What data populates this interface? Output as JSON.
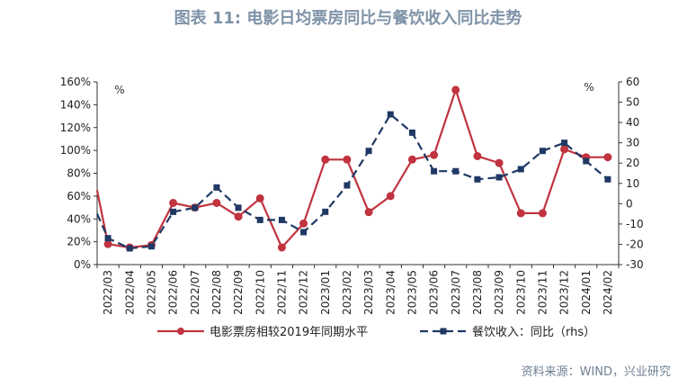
{
  "title": "图表 11: 电影日均票房同比与餐饮收入同比走势",
  "source": "资料来源：WIND，兴业研究",
  "chart_data": {
    "type": "line",
    "categories": [
      "2022/03",
      "2022/04",
      "2022/05",
      "2022/06",
      "2022/07",
      "2022/08",
      "2022/09",
      "2022/10",
      "2022/11",
      "2022/12",
      "2023/01",
      "2023/02",
      "2023/03",
      "2023/04",
      "2023/05",
      "2023/06",
      "2023/07",
      "2023/08",
      "2023/09",
      "2023/10",
      "2023/11",
      "2023/12",
      "2024/01",
      "2024/02"
    ],
    "left_axis": {
      "unit_label": "%",
      "ylim": [
        0,
        160
      ],
      "ticks": [
        0,
        20,
        40,
        60,
        80,
        100,
        120,
        140,
        160
      ],
      "tick_labels": [
        "0%",
        "20%",
        "40%",
        "60%",
        "80%",
        "100%",
        "120%",
        "140%",
        "160%"
      ]
    },
    "right_axis": {
      "unit_label": "%",
      "ylim": [
        -30,
        60
      ],
      "ticks": [
        -30,
        -20,
        -10,
        0,
        10,
        20,
        30,
        40,
        50,
        60
      ],
      "tick_labels": [
        "-30",
        "-20",
        "-10",
        "0",
        "10",
        "20",
        "30",
        "40",
        "50",
        "60"
      ]
    },
    "series": [
      {
        "name": "电影票房相较2019年同期水平",
        "axis": "left",
        "color": "#c0333f",
        "style": "solid",
        "marker": "circle",
        "starts_before": 65,
        "values": [
          18,
          15,
          17,
          54,
          50,
          54,
          42,
          58,
          15,
          36,
          92,
          92,
          46,
          60,
          92,
          96,
          153,
          95,
          89,
          45,
          45,
          101,
          94,
          94
        ]
      },
      {
        "name": "餐饮收入：同比（rhs）",
        "axis": "right",
        "color": "#1f3864",
        "style": "dashed",
        "marker": "square",
        "starts_before": -5,
        "values": [
          -17,
          -22,
          -21,
          -4,
          -2,
          8,
          -2,
          -8,
          -8,
          -14,
          -4,
          9,
          26,
          44,
          35,
          16,
          16,
          12,
          13,
          17,
          26,
          30,
          21,
          12
        ]
      }
    ],
    "grid": false,
    "legend_position": "bottom"
  }
}
